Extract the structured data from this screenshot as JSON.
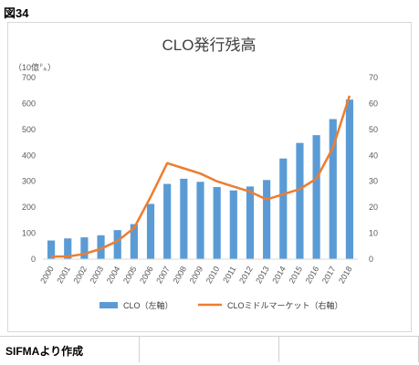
{
  "figure_label": "図34",
  "source_note": "SIFMAより作成",
  "chart_data": {
    "type": "bar",
    "title": "CLO発行残高",
    "left_axis_unit": "（10億㌦）",
    "categories": [
      "2000",
      "2001",
      "2002",
      "2003",
      "2004",
      "2005",
      "2006",
      "2007",
      "2008",
      "2009",
      "2010",
      "2011",
      "2012",
      "2013",
      "2014",
      "2015",
      "2016",
      "2017",
      "2018"
    ],
    "series": [
      {
        "name": "CLO（左軸）",
        "type": "bar",
        "axis": "left",
        "color": "#5B9BD5",
        "values": [
          72,
          80,
          84,
          92,
          112,
          135,
          213,
          290,
          310,
          298,
          278,
          265,
          280,
          305,
          388,
          448,
          478,
          540,
          615
        ]
      },
      {
        "name": "CLOミドルマーケット（右軸）",
        "type": "line",
        "axis": "right",
        "color": "#ED7D31",
        "values": [
          1,
          1,
          2,
          4,
          7,
          12,
          24,
          37,
          35,
          33,
          30,
          28,
          26,
          23,
          25,
          27,
          31,
          43,
          63
        ]
      }
    ],
    "left_ylim": [
      0,
      700
    ],
    "left_ticks": [
      0,
      100,
      200,
      300,
      400,
      500,
      600,
      700
    ],
    "right_ylim": [
      0,
      70
    ],
    "right_ticks": [
      0,
      10,
      20,
      30,
      40,
      50,
      60,
      70
    ],
    "grid": false,
    "legend_position": "bottom"
  }
}
